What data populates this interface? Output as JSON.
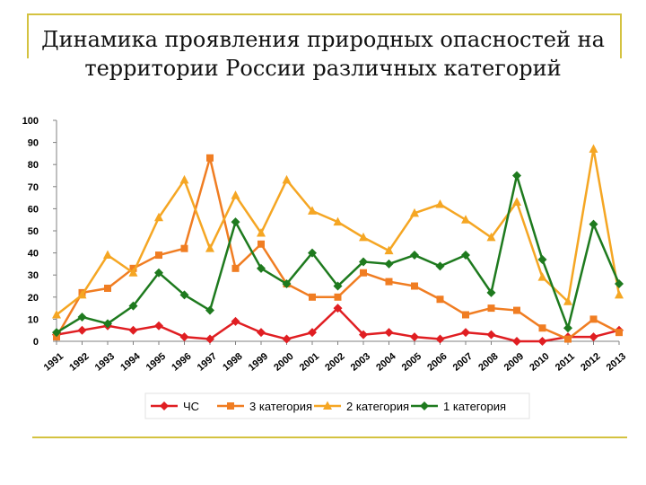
{
  "slide": {
    "title_line1": "Динамика проявления природных опасностей на",
    "title_line2": "территории России различных категорий"
  },
  "colors": {
    "accent_lines": "#d4c240",
    "chs": "#e01e22",
    "cat3": "#f07d22",
    "cat2": "#f5a623",
    "cat1": "#1e7a1e"
  },
  "chart_data": {
    "type": "line",
    "title": "",
    "xlabel": "",
    "ylabel": "",
    "categories": [
      "1991",
      "1992",
      "1993",
      "1994",
      "1995",
      "1996",
      "1997",
      "1998",
      "1999",
      "2000",
      "2001",
      "2002",
      "2003",
      "2004",
      "2005",
      "2006",
      "2007",
      "2008",
      "2009",
      "2010",
      "2011",
      "2012",
      "2013"
    ],
    "ylim": [
      0,
      100
    ],
    "yticks": [
      0,
      10,
      20,
      30,
      40,
      50,
      60,
      70,
      80,
      90,
      100
    ],
    "grid": false,
    "legend_position": "bottom",
    "series": [
      {
        "name": "ЧС",
        "marker": "diamond",
        "color": "#e01e22",
        "values": [
          3,
          5,
          7,
          5,
          7,
          2,
          1,
          9,
          4,
          1,
          4,
          15,
          3,
          4,
          2,
          1,
          4,
          3,
          0,
          0,
          2,
          2,
          5
        ]
      },
      {
        "name": "3 категория",
        "marker": "square",
        "color": "#f07d22",
        "values": [
          2,
          22,
          24,
          33,
          39,
          42,
          83,
          33,
          44,
          26,
          20,
          20,
          31,
          27,
          25,
          19,
          12,
          15,
          14,
          6,
          1,
          10,
          4
        ]
      },
      {
        "name": "2 категория",
        "marker": "triangle",
        "color": "#f5a623",
        "values": [
          12,
          21,
          39,
          31,
          56,
          73,
          42,
          66,
          49,
          73,
          59,
          54,
          47,
          41,
          58,
          62,
          55,
          47,
          63,
          29,
          18,
          87,
          21
        ]
      },
      {
        "name": "1 категория",
        "marker": "diamond",
        "color": "#1e7a1e",
        "values": [
          4,
          11,
          8,
          16,
          31,
          21,
          14,
          54,
          33,
          26,
          40,
          25,
          36,
          35,
          39,
          34,
          39,
          22,
          75,
          37,
          6,
          53,
          26
        ]
      }
    ]
  }
}
